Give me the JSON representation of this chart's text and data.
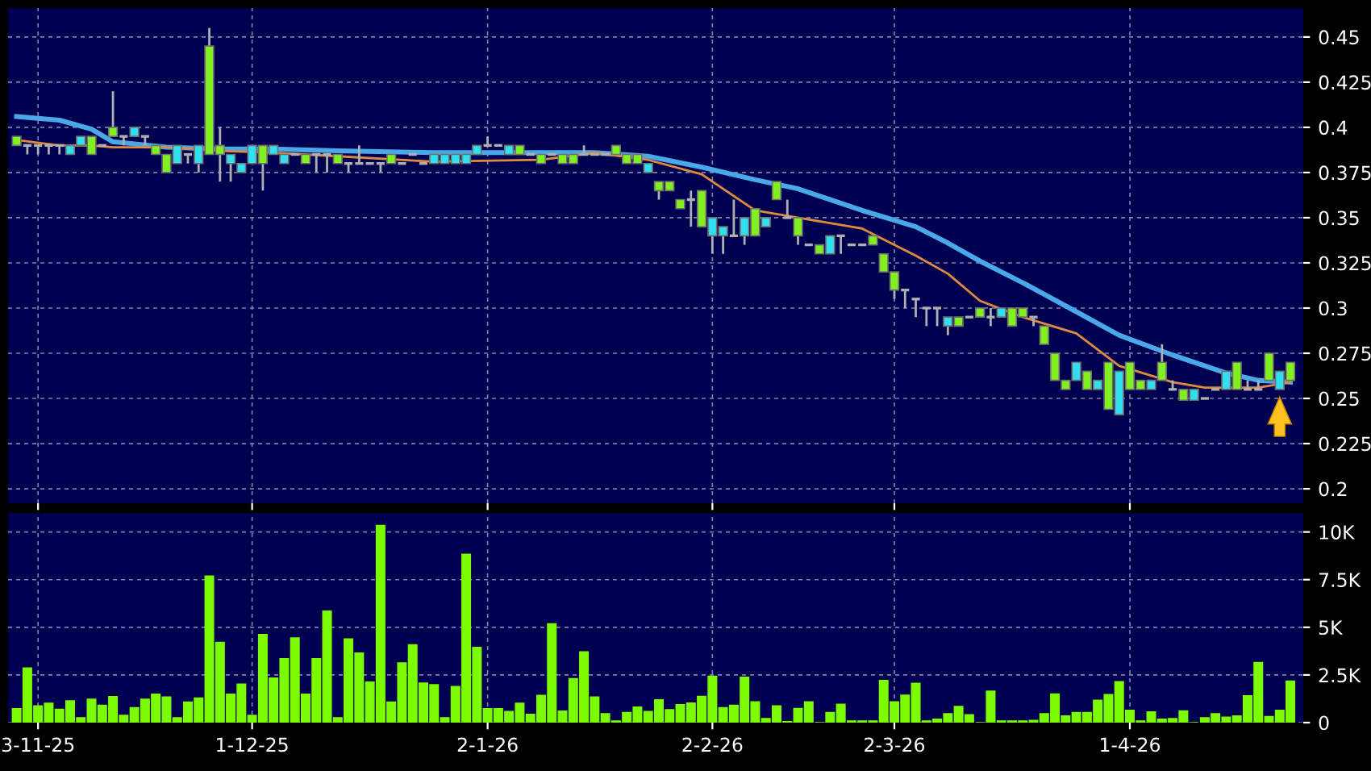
{
  "chart_data": [
    {
      "type": "candlestick",
      "categories": [
        null,
        null,
        null,
        null,
        null,
        null,
        null,
        null,
        null,
        null,
        null,
        null,
        null,
        null,
        null,
        null,
        null,
        null,
        null,
        null,
        null,
        null,
        null,
        null,
        null,
        null,
        null,
        null,
        null,
        null,
        null,
        null,
        null,
        null,
        null,
        null,
        null,
        null,
        null,
        null,
        null,
        null,
        null,
        null,
        null,
        null,
        null,
        null,
        null,
        null,
        null,
        null,
        null,
        null,
        null,
        null,
        null,
        null,
        null,
        null,
        null,
        null,
        null,
        null,
        null,
        null,
        null,
        null,
        null,
        null,
        null,
        null,
        null,
        null,
        null,
        null,
        null,
        null,
        null,
        null,
        null,
        null,
        null,
        null,
        null,
        null,
        null,
        null,
        null,
        null,
        null,
        null,
        null,
        null,
        null,
        null,
        null,
        null,
        null,
        null,
        null,
        null,
        null,
        null,
        null,
        null,
        null,
        null,
        null,
        null,
        null,
        null,
        null,
        null,
        null,
        null,
        null,
        null,
        null,
        null
      ],
      "ohlc": [
        [
          0.39,
          0.395,
          0.39,
          0.395
        ],
        [
          0.39,
          0.39,
          0.385,
          0.39
        ],
        [
          0.39,
          0.39,
          0.385,
          0.39
        ],
        [
          0.39,
          0.39,
          0.385,
          0.39
        ],
        [
          0.39,
          0.39,
          0.385,
          0.39
        ],
        [
          0.39,
          0.39,
          0.385,
          0.385
        ],
        [
          0.395,
          0.395,
          0.39,
          0.39
        ],
        [
          0.385,
          0.395,
          0.385,
          0.395
        ],
        [
          0.39,
          0.39,
          0.39,
          0.39
        ],
        [
          0.395,
          0.42,
          0.395,
          0.4
        ],
        [
          0.395,
          0.395,
          0.39,
          0.395
        ],
        [
          0.4,
          0.4,
          0.395,
          0.395
        ],
        [
          0.395,
          0.395,
          0.39,
          0.395
        ],
        [
          0.385,
          0.39,
          0.385,
          0.39
        ],
        [
          0.375,
          0.385,
          0.375,
          0.385
        ],
        [
          0.39,
          0.39,
          0.38,
          0.38
        ],
        [
          0.385,
          0.385,
          0.38,
          0.385
        ],
        [
          0.39,
          0.39,
          0.375,
          0.38
        ],
        [
          0.385,
          0.455,
          0.385,
          0.445
        ],
        [
          0.385,
          0.4,
          0.37,
          0.39
        ],
        [
          0.385,
          0.385,
          0.37,
          0.38
        ],
        [
          0.38,
          0.38,
          0.375,
          0.375
        ],
        [
          0.39,
          0.39,
          0.38,
          0.38
        ],
        [
          0.38,
          0.39,
          0.365,
          0.39
        ],
        [
          0.39,
          0.39,
          0.385,
          0.385
        ],
        [
          0.385,
          0.385,
          0.38,
          0.38
        ],
        [
          0.385,
          0.385,
          0.385,
          0.385
        ],
        [
          0.38,
          0.385,
          0.38,
          0.385
        ],
        [
          0.385,
          0.385,
          0.375,
          0.385
        ],
        [
          0.385,
          0.385,
          0.375,
          0.385
        ],
        [
          0.38,
          0.385,
          0.38,
          0.385
        ],
        [
          0.38,
          0.38,
          0.375,
          0.38
        ],
        [
          0.38,
          0.39,
          0.38,
          0.38
        ],
        [
          0.38,
          0.38,
          0.38,
          0.38
        ],
        [
          0.38,
          0.38,
          0.375,
          0.38
        ],
        [
          0.38,
          0.385,
          0.38,
          0.385
        ],
        [
          0.38,
          0.38,
          0.38,
          0.38
        ],
        [
          0.385,
          0.385,
          0.385,
          0.385
        ],
        [
          0.38,
          0.38,
          0.38,
          0.38
        ],
        [
          0.385,
          0.385,
          0.38,
          0.38
        ],
        [
          0.385,
          0.385,
          0.38,
          0.38
        ],
        [
          0.385,
          0.385,
          0.38,
          0.38
        ],
        [
          0.385,
          0.385,
          0.38,
          0.38
        ],
        [
          0.39,
          0.39,
          0.385,
          0.385
        ],
        [
          0.39,
          0.395,
          0.39,
          0.39
        ],
        [
          0.39,
          0.39,
          0.39,
          0.39
        ],
        [
          0.39,
          0.39,
          0.385,
          0.385
        ],
        [
          0.385,
          0.39,
          0.385,
          0.39
        ],
        [
          0.385,
          0.385,
          0.385,
          0.385
        ],
        [
          0.38,
          0.385,
          0.38,
          0.385
        ],
        [
          0.385,
          0.385,
          0.385,
          0.385
        ],
        [
          0.38,
          0.385,
          0.38,
          0.385
        ],
        [
          0.38,
          0.385,
          0.38,
          0.385
        ],
        [
          0.385,
          0.39,
          0.385,
          0.385
        ],
        [
          0.385,
          0.385,
          0.385,
          0.385
        ],
        [
          0.385,
          0.385,
          0.385,
          0.385
        ],
        [
          0.385,
          0.39,
          0.385,
          0.39
        ],
        [
          0.38,
          0.385,
          0.38,
          0.385
        ],
        [
          0.38,
          0.385,
          0.38,
          0.385
        ],
        [
          0.38,
          0.38,
          0.375,
          0.375
        ],
        [
          0.365,
          0.37,
          0.36,
          0.37
        ],
        [
          0.365,
          0.37,
          0.365,
          0.37
        ],
        [
          0.355,
          0.36,
          0.355,
          0.36
        ],
        [
          0.36,
          0.365,
          0.345,
          0.36
        ],
        [
          0.345,
          0.365,
          0.345,
          0.365
        ],
        [
          0.35,
          0.35,
          0.33,
          0.34
        ],
        [
          0.345,
          0.345,
          0.33,
          0.34
        ],
        [
          0.34,
          0.36,
          0.34,
          0.34
        ],
        [
          0.35,
          0.35,
          0.335,
          0.34
        ],
        [
          0.34,
          0.355,
          0.34,
          0.355
        ],
        [
          0.35,
          0.35,
          0.345,
          0.345
        ],
        [
          0.36,
          0.37,
          0.36,
          0.37
        ],
        [
          0.35,
          0.36,
          0.35,
          0.35
        ],
        [
          0.34,
          0.35,
          0.335,
          0.35
        ],
        [
          0.335,
          0.335,
          0.335,
          0.335
        ],
        [
          0.33,
          0.335,
          0.33,
          0.335
        ],
        [
          0.34,
          0.34,
          0.33,
          0.33
        ],
        [
          0.34,
          0.34,
          0.33,
          0.34
        ],
        [
          0.335,
          0.335,
          0.335,
          0.335
        ],
        [
          0.335,
          0.335,
          0.335,
          0.335
        ],
        [
          0.335,
          0.34,
          0.335,
          0.34
        ],
        [
          0.32,
          0.33,
          0.32,
          0.33
        ],
        [
          0.31,
          0.32,
          0.305,
          0.32
        ],
        [
          0.31,
          0.31,
          0.3,
          0.31
        ],
        [
          0.305,
          0.305,
          0.295,
          0.305
        ],
        [
          0.3,
          0.3,
          0.29,
          0.3
        ],
        [
          0.3,
          0.3,
          0.29,
          0.3
        ],
        [
          0.295,
          0.295,
          0.285,
          0.29
        ],
        [
          0.29,
          0.295,
          0.29,
          0.295
        ],
        [
          0.295,
          0.295,
          0.295,
          0.295
        ],
        [
          0.295,
          0.3,
          0.295,
          0.3
        ],
        [
          0.295,
          0.3,
          0.29,
          0.295
        ],
        [
          0.3,
          0.3,
          0.295,
          0.295
        ],
        [
          0.29,
          0.3,
          0.29,
          0.3
        ],
        [
          0.295,
          0.3,
          0.295,
          0.3
        ],
        [
          0.295,
          0.295,
          0.29,
          0.295
        ],
        [
          0.28,
          0.29,
          0.28,
          0.29
        ],
        [
          0.26,
          0.275,
          0.26,
          0.275
        ],
        [
          0.255,
          0.26,
          0.255,
          0.26
        ],
        [
          0.27,
          0.27,
          0.26,
          0.26
        ],
        [
          0.255,
          0.265,
          0.255,
          0.265
        ],
        [
          0.26,
          0.26,
          0.255,
          0.255
        ],
        [
          0.244,
          0.27,
          0.244,
          0.27
        ],
        [
          0.265,
          0.265,
          0.241,
          0.241
        ],
        [
          0.255,
          0.27,
          0.255,
          0.27
        ],
        [
          0.255,
          0.26,
          0.255,
          0.26
        ],
        [
          0.26,
          0.26,
          0.255,
          0.255
        ],
        [
          0.26,
          0.28,
          0.26,
          0.27
        ],
        [
          0.255,
          0.26,
          0.255,
          0.255
        ],
        [
          0.249,
          0.255,
          0.249,
          0.255
        ],
        [
          0.255,
          0.255,
          0.249,
          0.249
        ],
        [
          0.25,
          0.25,
          0.25,
          0.25
        ],
        [
          0.255,
          0.255,
          0.255,
          0.255
        ],
        [
          0.265,
          0.265,
          0.255,
          0.255
        ],
        [
          0.255,
          0.27,
          0.255,
          0.27
        ],
        [
          0.255,
          0.26,
          0.255,
          0.255
        ],
        [
          0.255,
          0.26,
          0.255,
          0.255
        ],
        [
          0.26,
          0.275,
          0.26,
          0.275
        ],
        [
          0.265,
          0.265,
          0.255,
          0.255
        ],
        [
          0.26,
          0.27,
          0.26,
          0.27
        ]
      ],
      "colors": [
        "#80f020",
        "#b0b0b0",
        "#b0b0b0",
        "#b0b0b0",
        "#b0b0b0",
        "#30e0f0",
        "#30e0f0",
        "#80f020",
        "#b0b0b0",
        "#80f020",
        "#b0b0b0",
        "#30e0f0",
        "#b0b0b0",
        "#80f020",
        "#80f020",
        "#30e0f0",
        "#b0b0b0",
        "#30e0f0",
        "#80f020",
        "#80f020",
        "#30e0f0",
        "#30e0f0",
        "#30e0f0",
        "#80f020",
        "#30e0f0",
        "#30e0f0",
        "#b0b0b0",
        "#80f020",
        "#b0b0b0",
        "#b0b0b0",
        "#80f020",
        "#b0b0b0",
        "#b0b0b0",
        "#b0b0b0",
        "#b0b0b0",
        "#80f020",
        "#b0b0b0",
        "#b0b0b0",
        "#b0b0b0",
        "#30e0f0",
        "#30e0f0",
        "#30e0f0",
        "#30e0f0",
        "#30e0f0",
        "#b0b0b0",
        "#b0b0b0",
        "#30e0f0",
        "#80f020",
        "#b0b0b0",
        "#80f020",
        "#b0b0b0",
        "#80f020",
        "#80f020",
        "#b0b0b0",
        "#b0b0b0",
        "#b0b0b0",
        "#80f020",
        "#80f020",
        "#80f020",
        "#30e0f0",
        "#80f020",
        "#80f020",
        "#80f020",
        "#b0b0b0",
        "#80f020",
        "#30e0f0",
        "#30e0f0",
        "#b0b0b0",
        "#30e0f0",
        "#80f020",
        "#30e0f0",
        "#80f020",
        "#b0b0b0",
        "#80f020",
        "#b0b0b0",
        "#80f020",
        "#30e0f0",
        "#b0b0b0",
        "#b0b0b0",
        "#b0b0b0",
        "#80f020",
        "#80f020",
        "#80f020",
        "#b0b0b0",
        "#b0b0b0",
        "#b0b0b0",
        "#b0b0b0",
        "#30e0f0",
        "#80f020",
        "#b0b0b0",
        "#80f020",
        "#b0b0b0",
        "#30e0f0",
        "#80f020",
        "#80f020",
        "#b0b0b0",
        "#80f020",
        "#80f020",
        "#80f020",
        "#30e0f0",
        "#80f020",
        "#30e0f0",
        "#80f020",
        "#30e0f0",
        "#80f020",
        "#80f020",
        "#30e0f0",
        "#80f020",
        "#b0b0b0",
        "#80f020",
        "#30e0f0",
        "#b0b0b0",
        "#b0b0b0",
        "#30e0f0",
        "#80f020",
        "#b0b0b0",
        "#b0b0b0",
        "#80f020",
        "#30e0f0",
        "#80f020"
      ],
      "series": [
        {
          "type": "line",
          "color": "#4aa8e8",
          "values": [
            0.406,
            null,
            null,
            null,
            0.404,
            null,
            null,
            0.399,
            null,
            0.392,
            null,
            null,
            null,
            null,
            0.389,
            null,
            null,
            null,
            null,
            0.388,
            null,
            null,
            null,
            null,
            0.388,
            null,
            null,
            null,
            null,
            null,
            0.387,
            null,
            null,
            null,
            null,
            null,
            null,
            null,
            null,
            0.386,
            null,
            null,
            null,
            null,
            null,
            null,
            null,
            null,
            null,
            0.386,
            null,
            null,
            null,
            null,
            0.386,
            null,
            null,
            null,
            null,
            0.384,
            null,
            null,
            null,
            null,
            0.378,
            null,
            null,
            null,
            null,
            0.371,
            null,
            null,
            null,
            0.366,
            null,
            null,
            null,
            null,
            null,
            0.354,
            null,
            null,
            null,
            null,
            0.345,
            null,
            null,
            0.336,
            null,
            null,
            0.326,
            null,
            null,
            null,
            0.314,
            null,
            null,
            null,
            null,
            0.298,
            null,
            null,
            null,
            0.285,
            null,
            null,
            null,
            null,
            0.274,
            null,
            null,
            0.268,
            null,
            0.264,
            null,
            null,
            0.26,
            null,
            null,
            0.259
          ]
        },
        {
          "type": "line",
          "color": "#e08a40",
          "values": [
            0.393,
            null,
            null,
            null,
            0.39,
            null,
            null,
            0.39,
            null,
            0.389,
            null,
            null,
            null,
            null,
            0.389,
            null,
            null,
            null,
            null,
            0.387,
            null,
            null,
            null,
            null,
            0.386,
            null,
            null,
            null,
            null,
            null,
            0.384,
            null,
            null,
            null,
            null,
            null,
            null,
            null,
            null,
            0.381,
            null,
            null,
            null,
            null,
            null,
            null,
            null,
            null,
            null,
            0.382,
            null,
            null,
            null,
            null,
            0.386,
            null,
            null,
            null,
            null,
            0.382,
            null,
            null,
            null,
            null,
            0.374,
            null,
            null,
            null,
            null,
            0.354,
            null,
            null,
            null,
            0.35,
            null,
            null,
            null,
            null,
            null,
            0.344,
            null,
            null,
            null,
            null,
            0.329,
            null,
            null,
            0.319,
            null,
            null,
            0.304,
            null,
            null,
            null,
            0.295,
            null,
            null,
            null,
            null,
            0.286,
            null,
            null,
            null,
            0.268,
            null,
            null,
            null,
            null,
            0.259,
            null,
            null,
            0.256,
            null,
            0.256,
            null,
            null,
            0.256,
            null,
            null,
            0.259
          ]
        }
      ],
      "ylim": [
        0.192,
        0.466
      ],
      "yticks": [
        0.2,
        0.225,
        0.25,
        0.275,
        0.3,
        0.325,
        0.35,
        0.375,
        0.4,
        0.425,
        0.45
      ],
      "grid": true,
      "tick_labels": "y"
    },
    {
      "type": "bar",
      "categories": [
        null,
        null,
        "3-11-25",
        null,
        null,
        null,
        null,
        null,
        null,
        null,
        null,
        null,
        null,
        null,
        null,
        null,
        null,
        null,
        null,
        null,
        null,
        null,
        "1-12-25",
        null,
        null,
        null,
        null,
        null,
        null,
        null,
        null,
        null,
        null,
        null,
        null,
        null,
        null,
        null,
        null,
        null,
        null,
        null,
        null,
        null,
        "2-1-26",
        null,
        null,
        null,
        null,
        null,
        null,
        null,
        null,
        null,
        null,
        null,
        null,
        null,
        null,
        null,
        null,
        null,
        null,
        null,
        null,
        "2-2-26",
        null,
        null,
        null,
        null,
        null,
        null,
        null,
        null,
        null,
        null,
        null,
        null,
        null,
        null,
        null,
        null,
        "2-3-26",
        null,
        null,
        null,
        null,
        null,
        null,
        null,
        null,
        null,
        null,
        null,
        null,
        null,
        null,
        null,
        null,
        null,
        null,
        null,
        null,
        null,
        "1-4-26",
        null,
        null,
        null,
        null,
        null,
        null,
        null,
        null,
        null,
        null,
        null,
        null,
        null,
        null,
        null
      ],
      "values": [
        730,
        2870,
        880,
        1020,
        700,
        1140,
        260,
        1230,
        910,
        1370,
        380,
        790,
        1230,
        1490,
        1350,
        260,
        1080,
        1290,
        7690,
        4210,
        1490,
        2020,
        380,
        4620,
        2340,
        3360,
        4440,
        1490,
        3360,
        5850,
        260,
        4390,
        3650,
        2130,
        10350,
        1080,
        3130,
        4090,
        2080,
        1990,
        260,
        1900,
        8830,
        3950,
        730,
        730,
        580,
        1020,
        440,
        1430,
        5180,
        610,
        2310,
        3710,
        1350,
        470,
        90,
        530,
        820,
        580,
        1200,
        680,
        940,
        1030,
        1380,
        2440,
        790,
        910,
        2380,
        1090,
        210,
        880,
        60,
        740,
        1090,
        0,
        530,
        970,
        90,
        90,
        90,
        2210,
        1090,
        1440,
        2060,
        90,
        180,
        470,
        850,
        410,
        0,
        1650,
        90,
        90,
        90,
        120,
        470,
        1500,
        350,
        530,
        530,
        1180,
        1470,
        2150,
        650,
        90,
        560,
        180,
        210,
        620,
        0,
        260,
        470,
        290,
        350,
        1410,
        3150,
        320,
        650,
        2180
      ],
      "color": "#7cfc00",
      "ylim": [
        0,
        11000
      ],
      "yticks": [
        0,
        {
          "value": 2500,
          "label": "2.5K"
        },
        {
          "value": 5000,
          "label": "5K"
        },
        {
          "value": 7500,
          "label": "7.5K"
        },
        {
          "value": 10000,
          "label": "10K"
        }
      ],
      "grid": true
    }
  ]
}
